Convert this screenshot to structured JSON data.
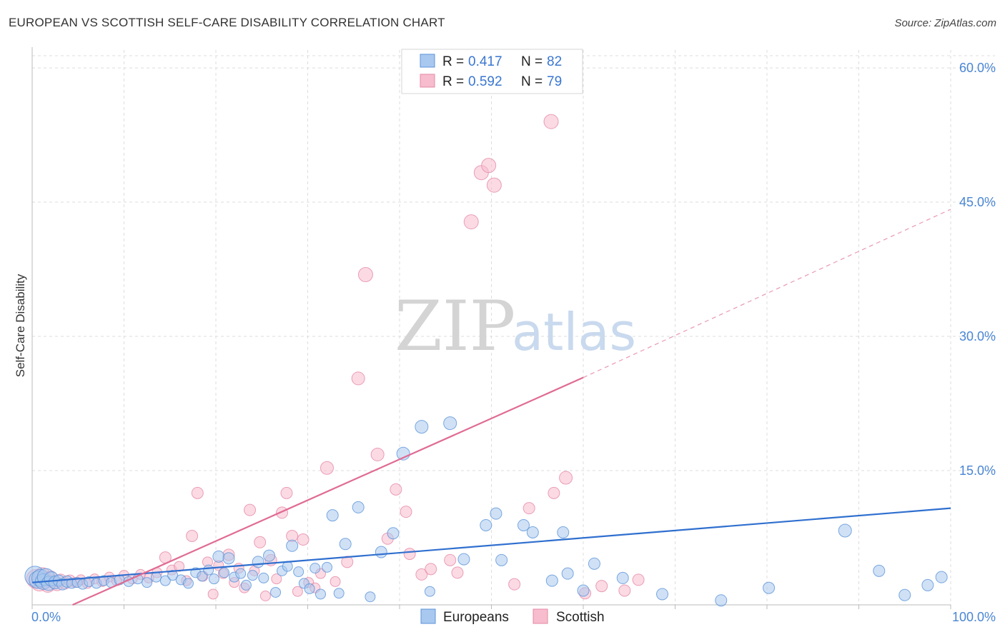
{
  "title": "EUROPEAN VS SCOTTISH SELF-CARE DISABILITY CORRELATION CHART",
  "source": "Source: ZipAtlas.com",
  "watermark": {
    "zip": "ZIP",
    "atlas": "atlas"
  },
  "legend_box": [
    {
      "r_label": "R =",
      "r_value": "0.417",
      "n_label": "N =",
      "n_value": "82"
    },
    {
      "r_label": "R =",
      "r_value": "0.592",
      "n_label": "N =",
      "n_value": "79"
    }
  ],
  "bottom_legend": [
    "Europeans",
    "Scottish"
  ],
  "colors": {
    "european_fill": "#a9c8ef",
    "european_stroke": "#5b93d8",
    "european_line": "#2f6fcf",
    "scottish_fill": "#f7bccd",
    "scottish_stroke": "#e58aa6",
    "scottish_line": "#e06b93",
    "grid": "#dddddd",
    "tick_text": "#4a86d4"
  },
  "chart_data": {
    "type": "scatter",
    "title": "EUROPEAN VS SCOTTISH SELF-CARE DISABILITY CORRELATION CHART",
    "xlabel": "",
    "ylabel": "Self-Care Disability",
    "xlim": [
      0,
      100
    ],
    "ylim": [
      0,
      62
    ],
    "x_tick_labels": [
      "0.0%",
      "100.0%"
    ],
    "y_ticks": [
      15,
      30,
      45,
      60
    ],
    "y_tick_labels": [
      "15.0%",
      "30.0%",
      "45.0%",
      "60.0%"
    ],
    "grid": true,
    "legend_position": "top-center",
    "series": [
      {
        "name": "Europeans",
        "R": 0.417,
        "N": 82,
        "trend": {
          "x": [
            0,
            100
          ],
          "y": [
            2.5,
            10.8
          ],
          "dashed_after": null
        },
        "points": [
          [
            0.3,
            3.2,
            14
          ],
          [
            0.6,
            2.8,
            12
          ],
          [
            0.9,
            3.0,
            12
          ],
          [
            1.2,
            2.6,
            11
          ],
          [
            1.5,
            3.1,
            12
          ],
          [
            1.8,
            2.4,
            10
          ],
          [
            2.1,
            2.9,
            10
          ],
          [
            2.5,
            2.5,
            9
          ],
          [
            2.9,
            2.7,
            8
          ],
          [
            3.3,
            2.3,
            8
          ],
          [
            3.8,
            2.6,
            8
          ],
          [
            4.3,
            2.4,
            7
          ],
          [
            4.9,
            2.5,
            7
          ],
          [
            5.5,
            2.3,
            7
          ],
          [
            6.2,
            2.6,
            7
          ],
          [
            7.0,
            2.4,
            7
          ],
          [
            7.8,
            2.7,
            7
          ],
          [
            8.6,
            2.5,
            7
          ],
          [
            9.5,
            2.8,
            7
          ],
          [
            10.5,
            2.6,
            7
          ],
          [
            11.5,
            2.9,
            7
          ],
          [
            12.5,
            2.5,
            7
          ],
          [
            13.5,
            3.1,
            7
          ],
          [
            14.5,
            2.7,
            7
          ],
          [
            15.3,
            3.3,
            7
          ],
          [
            16.2,
            2.8,
            7
          ],
          [
            17.0,
            2.4,
            7
          ],
          [
            17.8,
            3.6,
            7
          ],
          [
            18.5,
            3.2,
            7
          ],
          [
            19.2,
            3.9,
            7
          ],
          [
            19.8,
            2.9,
            7
          ],
          [
            20.3,
            5.4,
            8
          ],
          [
            20.9,
            3.6,
            7
          ],
          [
            21.4,
            5.2,
            8
          ],
          [
            22.0,
            3.1,
            7
          ],
          [
            22.7,
            3.5,
            7
          ],
          [
            23.3,
            2.2,
            7
          ],
          [
            24.0,
            3.3,
            7
          ],
          [
            24.6,
            4.8,
            8
          ],
          [
            25.2,
            3.0,
            7
          ],
          [
            25.8,
            5.5,
            8
          ],
          [
            26.5,
            1.4,
            7
          ],
          [
            27.2,
            3.8,
            7
          ],
          [
            27.8,
            4.3,
            7
          ],
          [
            28.3,
            6.6,
            8
          ],
          [
            29.0,
            3.7,
            7
          ],
          [
            29.6,
            2.4,
            7
          ],
          [
            30.2,
            1.8,
            7
          ],
          [
            30.8,
            4.1,
            7
          ],
          [
            31.4,
            1.2,
            7
          ],
          [
            32.1,
            4.2,
            7
          ],
          [
            32.7,
            10.0,
            8
          ],
          [
            33.4,
            1.3,
            7
          ],
          [
            34.1,
            6.8,
            8
          ],
          [
            35.5,
            10.9,
            8
          ],
          [
            36.8,
            0.9,
            7
          ],
          [
            38.0,
            5.9,
            8
          ],
          [
            39.3,
            8.0,
            8
          ],
          [
            40.4,
            16.9,
            9
          ],
          [
            42.4,
            19.9,
            9
          ],
          [
            43.3,
            1.5,
            7
          ],
          [
            45.5,
            20.3,
            9
          ],
          [
            47.0,
            5.1,
            8
          ],
          [
            49.4,
            8.9,
            8
          ],
          [
            50.5,
            10.2,
            8
          ],
          [
            51.1,
            5.0,
            8
          ],
          [
            53.5,
            8.9,
            8
          ],
          [
            54.5,
            8.1,
            8
          ],
          [
            56.6,
            2.7,
            8
          ],
          [
            57.8,
            8.1,
            8
          ],
          [
            58.3,
            3.5,
            8
          ],
          [
            60.0,
            1.6,
            8
          ],
          [
            61.2,
            4.6,
            8
          ],
          [
            64.3,
            3.0,
            8
          ],
          [
            68.6,
            1.2,
            8
          ],
          [
            75.0,
            0.5,
            8
          ],
          [
            80.2,
            1.9,
            8
          ],
          [
            88.5,
            8.3,
            9
          ],
          [
            92.2,
            3.8,
            8
          ],
          [
            95.0,
            1.1,
            8
          ],
          [
            97.5,
            2.2,
            8
          ],
          [
            99.0,
            3.1,
            8
          ]
        ]
      },
      {
        "name": "Scottish",
        "R": 0.592,
        "N": 79,
        "trend": {
          "x": [
            4.4,
            60.0,
            100.0
          ],
          "y": [
            0.0,
            25.4,
            44.2
          ],
          "dashed_after": 60.0
        },
        "points": [
          [
            0.4,
            2.9,
            13
          ],
          [
            0.8,
            2.5,
            12
          ],
          [
            1.1,
            3.2,
            12
          ],
          [
            1.4,
            2.7,
            11
          ],
          [
            1.7,
            2.2,
            10
          ],
          [
            2.0,
            3.0,
            10
          ],
          [
            2.3,
            2.6,
            9
          ],
          [
            2.7,
            2.3,
            9
          ],
          [
            3.1,
            2.8,
            8
          ],
          [
            3.6,
            2.4,
            8
          ],
          [
            4.1,
            2.7,
            8
          ],
          [
            4.7,
            2.5,
            7
          ],
          [
            5.3,
            2.8,
            7
          ],
          [
            6.0,
            2.4,
            7
          ],
          [
            6.8,
            2.9,
            7
          ],
          [
            7.6,
            2.6,
            7
          ],
          [
            8.4,
            3.1,
            7
          ],
          [
            9.2,
            2.7,
            7
          ],
          [
            10.0,
            3.3,
            7
          ],
          [
            10.9,
            2.9,
            7
          ],
          [
            11.8,
            3.4,
            7
          ],
          [
            12.7,
            3.0,
            7
          ],
          [
            13.6,
            3.6,
            7
          ],
          [
            14.5,
            5.3,
            8
          ],
          [
            15.2,
            3.9,
            7
          ],
          [
            16.0,
            4.3,
            7
          ],
          [
            16.8,
            2.7,
            7
          ],
          [
            17.4,
            7.7,
            8
          ],
          [
            18.0,
            12.5,
            8
          ],
          [
            18.6,
            3.2,
            7
          ],
          [
            19.1,
            4.8,
            7
          ],
          [
            19.7,
            1.2,
            7
          ],
          [
            20.3,
            4.4,
            7
          ],
          [
            20.8,
            3.5,
            7
          ],
          [
            21.4,
            5.6,
            8
          ],
          [
            22.0,
            2.5,
            7
          ],
          [
            22.5,
            4.1,
            7
          ],
          [
            23.1,
            1.9,
            7
          ],
          [
            23.7,
            10.6,
            8
          ],
          [
            24.2,
            3.8,
            7
          ],
          [
            24.8,
            7.0,
            8
          ],
          [
            25.4,
            1.0,
            7
          ],
          [
            26.0,
            5.0,
            8
          ],
          [
            26.6,
            2.9,
            7
          ],
          [
            27.2,
            10.3,
            8
          ],
          [
            27.7,
            12.5,
            8
          ],
          [
            28.3,
            7.7,
            8
          ],
          [
            28.9,
            1.5,
            7
          ],
          [
            29.5,
            7.3,
            8
          ],
          [
            30.1,
            2.5,
            7
          ],
          [
            30.8,
            1.9,
            7
          ],
          [
            31.4,
            3.5,
            7
          ],
          [
            32.1,
            15.3,
            9
          ],
          [
            33.0,
            2.6,
            7
          ],
          [
            34.3,
            4.8,
            8
          ],
          [
            35.5,
            25.3,
            9
          ],
          [
            36.3,
            36.9,
            10
          ],
          [
            37.6,
            16.8,
            9
          ],
          [
            38.7,
            7.4,
            8
          ],
          [
            39.6,
            12.9,
            8
          ],
          [
            40.7,
            10.4,
            8
          ],
          [
            41.1,
            5.7,
            8
          ],
          [
            42.4,
            3.4,
            8
          ],
          [
            43.4,
            4.0,
            8
          ],
          [
            45.5,
            5.0,
            8
          ],
          [
            46.3,
            3.6,
            8
          ],
          [
            47.8,
            42.8,
            10
          ],
          [
            48.9,
            48.3,
            10
          ],
          [
            49.7,
            49.1,
            10
          ],
          [
            50.3,
            46.9,
            10
          ],
          [
            52.5,
            2.3,
            8
          ],
          [
            54.1,
            10.8,
            8
          ],
          [
            56.5,
            54.0,
            10
          ],
          [
            56.8,
            12.5,
            8
          ],
          [
            58.1,
            14.2,
            9
          ],
          [
            60.2,
            1.3,
            8
          ],
          [
            62.0,
            2.1,
            8
          ],
          [
            64.5,
            1.6,
            8
          ],
          [
            66.0,
            2.8,
            8
          ]
        ]
      }
    ]
  }
}
